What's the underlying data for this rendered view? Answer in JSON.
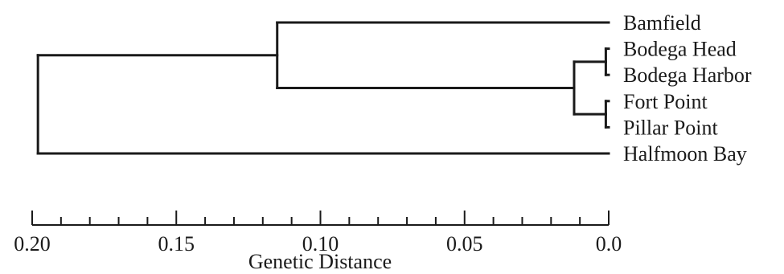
{
  "leaves": [
    {
      "label": "Bamfield"
    },
    {
      "label": "Bodega Head"
    },
    {
      "label": "Bodega Harbor"
    },
    {
      "label": "Fort Point"
    },
    {
      "label": "Pillar Point"
    },
    {
      "label": "Halfmoon Bay"
    }
  ],
  "clusters": [
    {
      "id": "root",
      "height": 0.198,
      "children": [
        "n1",
        "leaf5"
      ]
    },
    {
      "id": "n1",
      "height": 0.115,
      "children": [
        "leaf0",
        "n2"
      ]
    },
    {
      "id": "n2",
      "height": 0.012,
      "children": [
        "n3",
        "n4"
      ]
    },
    {
      "id": "n3",
      "height": 0.001,
      "children": [
        "leaf1",
        "leaf2"
      ]
    },
    {
      "id": "n4",
      "height": 0.001,
      "children": [
        "leaf3",
        "leaf4"
      ]
    }
  ],
  "axis": {
    "title": "Genetic Distance",
    "domain": [
      0.2,
      0.0
    ],
    "major_ticks": [
      "0.20",
      "0.15",
      "0.10",
      "0.05",
      "0.0"
    ],
    "major_values": [
      0.2,
      0.15,
      0.1,
      0.05,
      0.0
    ],
    "minor_step": 0.01
  }
}
